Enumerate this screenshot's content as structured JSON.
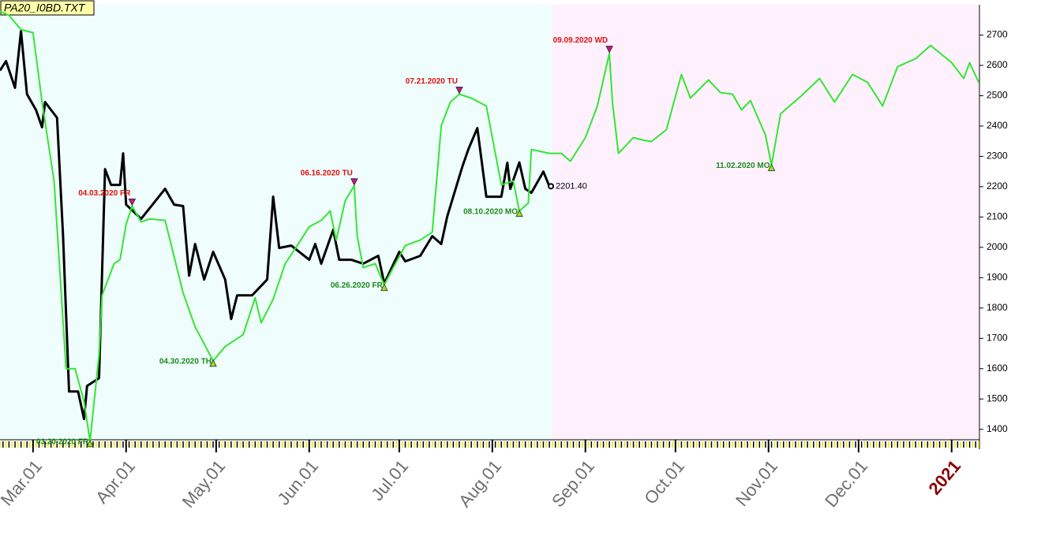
{
  "chart_data": {
    "type": "line",
    "title": "PA20_I0BD.TXT",
    "xlim": [
      "2020-02-19",
      "2021-01-10"
    ],
    "ylim": [
      1350,
      2800
    ],
    "yticks": [
      1400,
      1500,
      1600,
      1700,
      1800,
      1900,
      2000,
      2100,
      2200,
      2300,
      2400,
      2500,
      2600,
      2700
    ],
    "xticks": [
      {
        "value": "2020-03-01",
        "label": "Mar.01"
      },
      {
        "value": "2020-04-01",
        "label": "Apr.01"
      },
      {
        "value": "2020-05-01",
        "label": "May.01"
      },
      {
        "value": "2020-06-01",
        "label": "Jun.01"
      },
      {
        "value": "2020-07-01",
        "label": "Jul.01"
      },
      {
        "value": "2020-08-01",
        "label": "Aug.01"
      },
      {
        "value": "2020-09-01",
        "label": "Sep.01"
      },
      {
        "value": "2020-10-01",
        "label": "Oct.01"
      },
      {
        "value": "2020-11-01",
        "label": "Nov.01"
      },
      {
        "value": "2020-12-01",
        "label": "Dec.01"
      },
      {
        "value": "2021-01-01",
        "label": "2021"
      }
    ],
    "series": [
      {
        "color": "#000000",
        "last_label": "2201.40",
        "x": [
          "2020-02-19",
          "2020-02-21",
          "2020-02-24",
          "2020-02-26",
          "2020-02-28",
          "2020-03-02",
          "2020-03-04",
          "2020-03-05",
          "2020-03-09",
          "2020-03-11",
          "2020-03-13",
          "2020-03-16",
          "2020-03-18",
          "2020-03-19",
          "2020-03-23",
          "2020-03-25",
          "2020-03-27",
          "2020-03-30",
          "2020-03-31",
          "2020-04-01",
          "2020-04-06",
          "2020-04-14",
          "2020-04-17",
          "2020-04-20",
          "2020-04-22",
          "2020-04-24",
          "2020-04-27",
          "2020-04-30",
          "2020-05-04",
          "2020-05-06",
          "2020-05-08",
          "2020-05-13",
          "2020-05-18",
          "2020-05-20",
          "2020-05-22",
          "2020-05-26",
          "2020-06-01",
          "2020-06-03",
          "2020-06-05",
          "2020-06-09",
          "2020-06-11",
          "2020-06-15",
          "2020-06-19",
          "2020-06-24",
          "2020-06-26",
          "2020-07-01",
          "2020-07-03",
          "2020-07-08",
          "2020-07-12",
          "2020-07-15",
          "2020-07-17",
          "2020-07-22",
          "2020-07-24",
          "2020-07-27",
          "2020-07-30",
          "2020-08-04",
          "2020-08-06",
          "2020-08-07",
          "2020-08-10",
          "2020-08-12",
          "2020-08-14",
          "2020-08-18",
          "2020-08-20"
        ],
        "values": [
          2583,
          2614,
          2526,
          2713,
          2505,
          2453,
          2396,
          2479,
          2427,
          2037,
          1525,
          1525,
          1434,
          1543,
          1569,
          2258,
          2206,
          2206,
          2310,
          2141,
          2094,
          2193,
          2141,
          2136,
          1907,
          2011,
          1894,
          1985,
          1894,
          1764,
          1842,
          1842,
          1894,
          2167,
          1998,
          2006,
          1959,
          2011,
          1946,
          2058,
          1959,
          1959,
          1946,
          1972,
          1881,
          1985,
          1954,
          1972,
          2037,
          2011,
          2102,
          2266,
          2323,
          2393,
          2167,
          2167,
          2279,
          2193,
          2280,
          2193,
          2180,
          2250,
          2201.4
        ]
      },
      {
        "color": "#33e633",
        "x": [
          "2020-02-19",
          "2020-02-22",
          "2020-02-26",
          "2020-03-01",
          "2020-03-04",
          "2020-03-08",
          "2020-03-12",
          "2020-03-15",
          "2020-03-18",
          "2020-03-20",
          "2020-03-23",
          "2020-03-24",
          "2020-03-28",
          "2020-03-30",
          "2020-04-01",
          "2020-04-03",
          "2020-04-06",
          "2020-04-09",
          "2020-04-14",
          "2020-04-20",
          "2020-04-24",
          "2020-04-30",
          "2020-05-04",
          "2020-05-10",
          "2020-05-14",
          "2020-05-16",
          "2020-05-20",
          "2020-05-24",
          "2020-05-28",
          "2020-06-01",
          "2020-06-05",
          "2020-06-08",
          "2020-06-10",
          "2020-06-13",
          "2020-06-16",
          "2020-06-17",
          "2020-06-19",
          "2020-06-23",
          "2020-06-26",
          "2020-06-29",
          "2020-07-03",
          "2020-07-08",
          "2020-07-12",
          "2020-07-15",
          "2020-07-18",
          "2020-07-21",
          "2020-07-25",
          "2020-07-30",
          "2020-08-04",
          "2020-08-08",
          "2020-08-10",
          "2020-08-13",
          "2020-08-14",
          "2020-08-20",
          "2020-08-24",
          "2020-08-27",
          "2020-09-01",
          "2020-09-05",
          "2020-09-09",
          "2020-09-10",
          "2020-09-12",
          "2020-09-17",
          "2020-09-20",
          "2020-09-23",
          "2020-09-28",
          "2020-10-03",
          "2020-10-06",
          "2020-10-12",
          "2020-10-16",
          "2020-10-20",
          "2020-10-23",
          "2020-10-26",
          "2020-10-31",
          "2020-11-02",
          "2020-11-05",
          "2020-11-08",
          "2020-11-12",
          "2020-11-18",
          "2020-11-23",
          "2020-11-29",
          "2020-12-04",
          "2020-12-09",
          "2020-12-14",
          "2020-12-20",
          "2020-12-25",
          "2021-01-01",
          "2021-01-05",
          "2021-01-07",
          "2021-01-10"
        ],
        "values": [
          2778,
          2765,
          2718,
          2708,
          2479,
          2219,
          1600,
          1600,
          1491,
          1361,
          1647,
          1842,
          1946,
          1959,
          2076,
          2136,
          2084,
          2094,
          2089,
          1850,
          1738,
          1626,
          1673,
          1712,
          1834,
          1751,
          1829,
          1946,
          2006,
          2068,
          2089,
          2120,
          2024,
          2154,
          2203,
          2037,
          1933,
          1946,
          1876,
          1933,
          2006,
          2024,
          2050,
          2401,
          2479,
          2505,
          2492,
          2466,
          2206,
          2219,
          2120,
          2146,
          2323,
          2310,
          2310,
          2284,
          2362,
          2466,
          2640,
          2479,
          2310,
          2362,
          2354,
          2349,
          2388,
          2570,
          2492,
          2552,
          2510,
          2505,
          2453,
          2484,
          2370,
          2271,
          2440,
          2466,
          2500,
          2557,
          2479,
          2570,
          2544,
          2466,
          2596,
          2622,
          2666,
          2609,
          2557,
          2609,
          2544
        ]
      }
    ],
    "annotations": [
      {
        "label": "03.20.2020 FR",
        "x": "2020-03-20",
        "y": 1361,
        "kind": "low",
        "color": "#1a8a1a"
      },
      {
        "label": "04.03.2020 FR",
        "x": "2020-04-03",
        "y": 2136,
        "kind": "high",
        "color": "#e01010"
      },
      {
        "label": "04.30.2020 TH",
        "x": "2020-04-30",
        "y": 1626,
        "kind": "low",
        "color": "#1a8a1a"
      },
      {
        "label": "06.16.2020 TU",
        "x": "2020-06-16",
        "y": 2203,
        "kind": "high",
        "color": "#e01010"
      },
      {
        "label": "06.26.2020 FR",
        "x": "2020-06-26",
        "y": 1876,
        "kind": "low",
        "color": "#1a8a1a"
      },
      {
        "label": "07.21.2020 TU",
        "x": "2020-07-21",
        "y": 2505,
        "kind": "high",
        "color": "#e01010"
      },
      {
        "label": "08.10.2020 MO",
        "x": "2020-08-10",
        "y": 2120,
        "kind": "low",
        "color": "#1a8a1a"
      },
      {
        "label": "09.09.2020 WD",
        "x": "2020-09-09",
        "y": 2640,
        "kind": "high",
        "color": "#e01010"
      },
      {
        "label": "11.02.2020 MO",
        "x": "2020-11-02",
        "y": 2271,
        "kind": "low",
        "color": "#1a8a1a"
      }
    ]
  }
}
